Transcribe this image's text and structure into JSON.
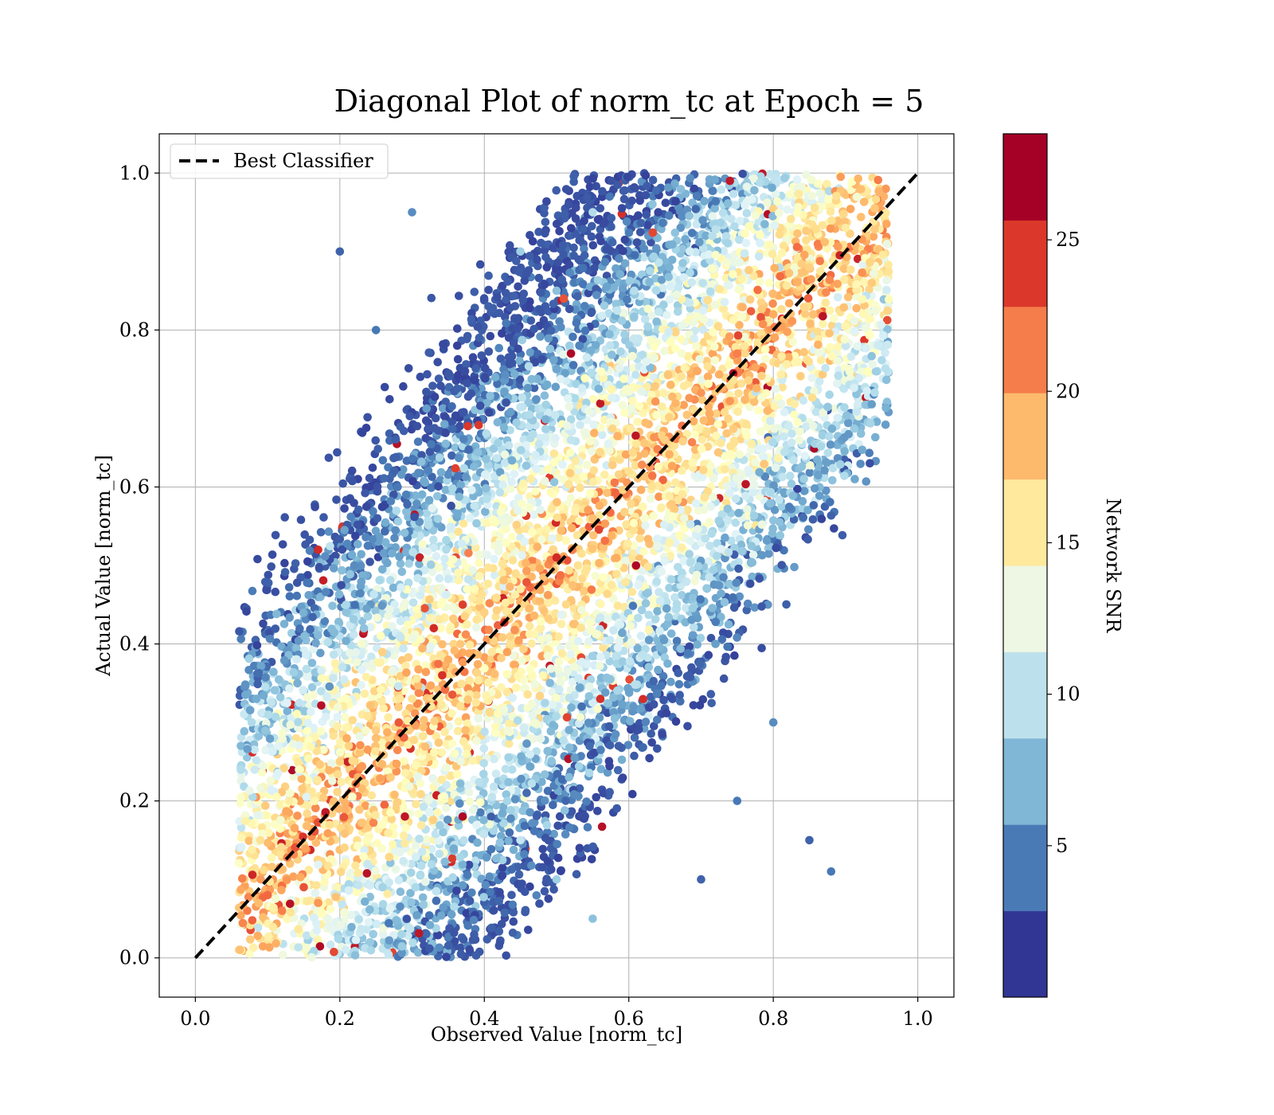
{
  "chart_data": {
    "type": "scatter",
    "title": "Diagonal Plot of norm_tc at Epoch = 5",
    "xlabel": "Observed Value [norm_tc]",
    "ylabel": "Actual Value [norm_tc]",
    "xlim": [
      -0.05,
      1.05
    ],
    "ylim": [
      -0.05,
      1.05
    ],
    "xticks": [
      "0.0",
      "0.2",
      "0.4",
      "0.6",
      "0.8",
      "1.0"
    ],
    "yticks": [
      "0.0",
      "0.2",
      "0.4",
      "0.6",
      "0.8",
      "1.0"
    ],
    "grid": true,
    "legend": {
      "placement": "top-left",
      "entries": [
        "Best Classifier"
      ]
    },
    "reference_line": {
      "name": "Best Classifier",
      "style": "dashed",
      "color": "#000000",
      "x": [
        0.0,
        1.0
      ],
      "y": [
        0.0,
        1.0
      ]
    },
    "colorbar": {
      "label": "Network SNR",
      "range": [
        0,
        28.5
      ],
      "ticks": [
        "5",
        "10",
        "15",
        "20",
        "25"
      ],
      "tick_values": [
        5,
        10,
        15,
        20,
        25
      ],
      "colors": [
        "#313695",
        "#4575b4",
        "#74add1",
        "#abd9e9",
        "#e0f3f8",
        "#ffffbf",
        "#fee090",
        "#fdae61",
        "#f46d43",
        "#d73027",
        "#a50026"
      ],
      "band_colors": [
        "#313695",
        "#4a7ab6",
        "#80b6d6",
        "#bde1ec",
        "#eef7e3",
        "#fee99d",
        "#fdba6c",
        "#f47d4b",
        "#db382b",
        "#a50026"
      ]
    },
    "points_sample": [
      {
        "x": 0.1,
        "y": 0.08,
        "snr": 23
      },
      {
        "x": 0.12,
        "y": 0.06,
        "snr": 22
      },
      {
        "x": 0.15,
        "y": 0.09,
        "snr": 24
      },
      {
        "x": 0.17,
        "y": 0.07,
        "snr": 21
      },
      {
        "x": 0.09,
        "y": 0.15,
        "snr": 17
      },
      {
        "x": 0.13,
        "y": 0.2,
        "snr": 16
      },
      {
        "x": 0.2,
        "y": 0.25,
        "snr": 18
      },
      {
        "x": 0.25,
        "y": 0.28,
        "snr": 19
      },
      {
        "x": 0.3,
        "y": 0.33,
        "snr": 17
      },
      {
        "x": 0.35,
        "y": 0.38,
        "snr": 20
      },
      {
        "x": 0.4,
        "y": 0.44,
        "snr": 18
      },
      {
        "x": 0.45,
        "y": 0.47,
        "snr": 16
      },
      {
        "x": 0.5,
        "y": 0.51,
        "snr": 26
      },
      {
        "x": 0.55,
        "y": 0.56,
        "snr": 19
      },
      {
        "x": 0.6,
        "y": 0.62,
        "snr": 17
      },
      {
        "x": 0.65,
        "y": 0.66,
        "snr": 18
      },
      {
        "x": 0.7,
        "y": 0.72,
        "snr": 21
      },
      {
        "x": 0.75,
        "y": 0.77,
        "snr": 22
      },
      {
        "x": 0.8,
        "y": 0.82,
        "snr": 20
      },
      {
        "x": 0.85,
        "y": 0.88,
        "snr": 18
      },
      {
        "x": 0.9,
        "y": 0.93,
        "snr": 16
      },
      {
        "x": 0.52,
        "y": 0.77,
        "snr": 28
      },
      {
        "x": 0.51,
        "y": 0.84,
        "snr": 24
      },
      {
        "x": 0.37,
        "y": 0.18,
        "snr": 28
      },
      {
        "x": 0.29,
        "y": 0.18,
        "snr": 27
      },
      {
        "x": 0.17,
        "y": 0.52,
        "snr": 26
      },
      {
        "x": 0.61,
        "y": 0.5,
        "snr": 28
      },
      {
        "x": 0.74,
        "y": 0.99,
        "snr": 27
      },
      {
        "x": 0.33,
        "y": 0.42,
        "snr": 26
      },
      {
        "x": 0.37,
        "y": 0.45,
        "snr": 25
      },
      {
        "x": 0.2,
        "y": 0.9,
        "snr": 2
      },
      {
        "x": 0.25,
        "y": 0.8,
        "snr": 3
      },
      {
        "x": 0.3,
        "y": 0.95,
        "snr": 4
      },
      {
        "x": 0.32,
        "y": 0.7,
        "snr": 5
      },
      {
        "x": 0.28,
        "y": 0.6,
        "snr": 3
      },
      {
        "x": 0.22,
        "y": 0.5,
        "snr": 4
      },
      {
        "x": 0.7,
        "y": 0.1,
        "snr": 2
      },
      {
        "x": 0.75,
        "y": 0.2,
        "snr": 3
      },
      {
        "x": 0.8,
        "y": 0.3,
        "snr": 4
      },
      {
        "x": 0.85,
        "y": 0.15,
        "snr": 2
      },
      {
        "x": 0.72,
        "y": 0.4,
        "snr": 5
      },
      {
        "x": 0.88,
        "y": 0.11,
        "snr": 3
      },
      {
        "x": 0.45,
        "y": 0.9,
        "snr": 8
      },
      {
        "x": 0.55,
        "y": 0.95,
        "snr": 9
      },
      {
        "x": 0.5,
        "y": 0.85,
        "snr": 7
      },
      {
        "x": 0.5,
        "y": 0.1,
        "snr": 8
      },
      {
        "x": 0.55,
        "y": 0.05,
        "snr": 7
      },
      {
        "x": 0.45,
        "y": 0.15,
        "snr": 10
      }
    ]
  }
}
